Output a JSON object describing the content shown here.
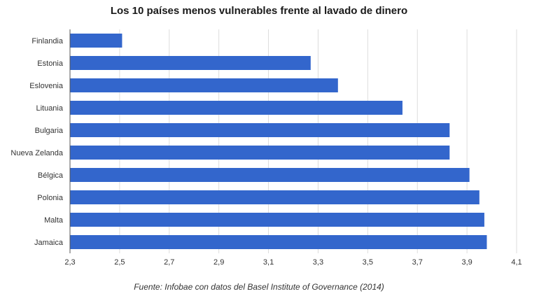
{
  "chart_data": {
    "type": "bar",
    "orientation": "horizontal",
    "title": "Los 10 países menos vulnerables frente al lavado de dinero",
    "categories": [
      "Finlandia",
      "Estonia",
      "Eslovenia",
      "Lituania",
      "Bulgaria",
      "Nueva Zelanda",
      "Bélgica",
      "Polonia",
      "Malta",
      "Jamaica"
    ],
    "values": [
      2.51,
      3.27,
      3.38,
      3.64,
      3.83,
      3.83,
      3.91,
      3.95,
      3.97,
      3.98
    ],
    "xlim": [
      2.3,
      4.1
    ],
    "xticks": [
      2.3,
      2.5,
      2.7,
      2.9,
      3.1,
      3.3,
      3.5,
      3.7,
      3.9,
      4.1
    ],
    "xtick_labels": [
      "2,3",
      "2,5",
      "2,7",
      "2,9",
      "3,1",
      "3,3",
      "3,5",
      "3,7",
      "3,9",
      "4,1"
    ],
    "grid": true,
    "bar_color": "#3366cc",
    "grid_color": "#dddddd",
    "source": "Fuente: Infobae con datos del Basel Institute of Governance (2014)"
  }
}
